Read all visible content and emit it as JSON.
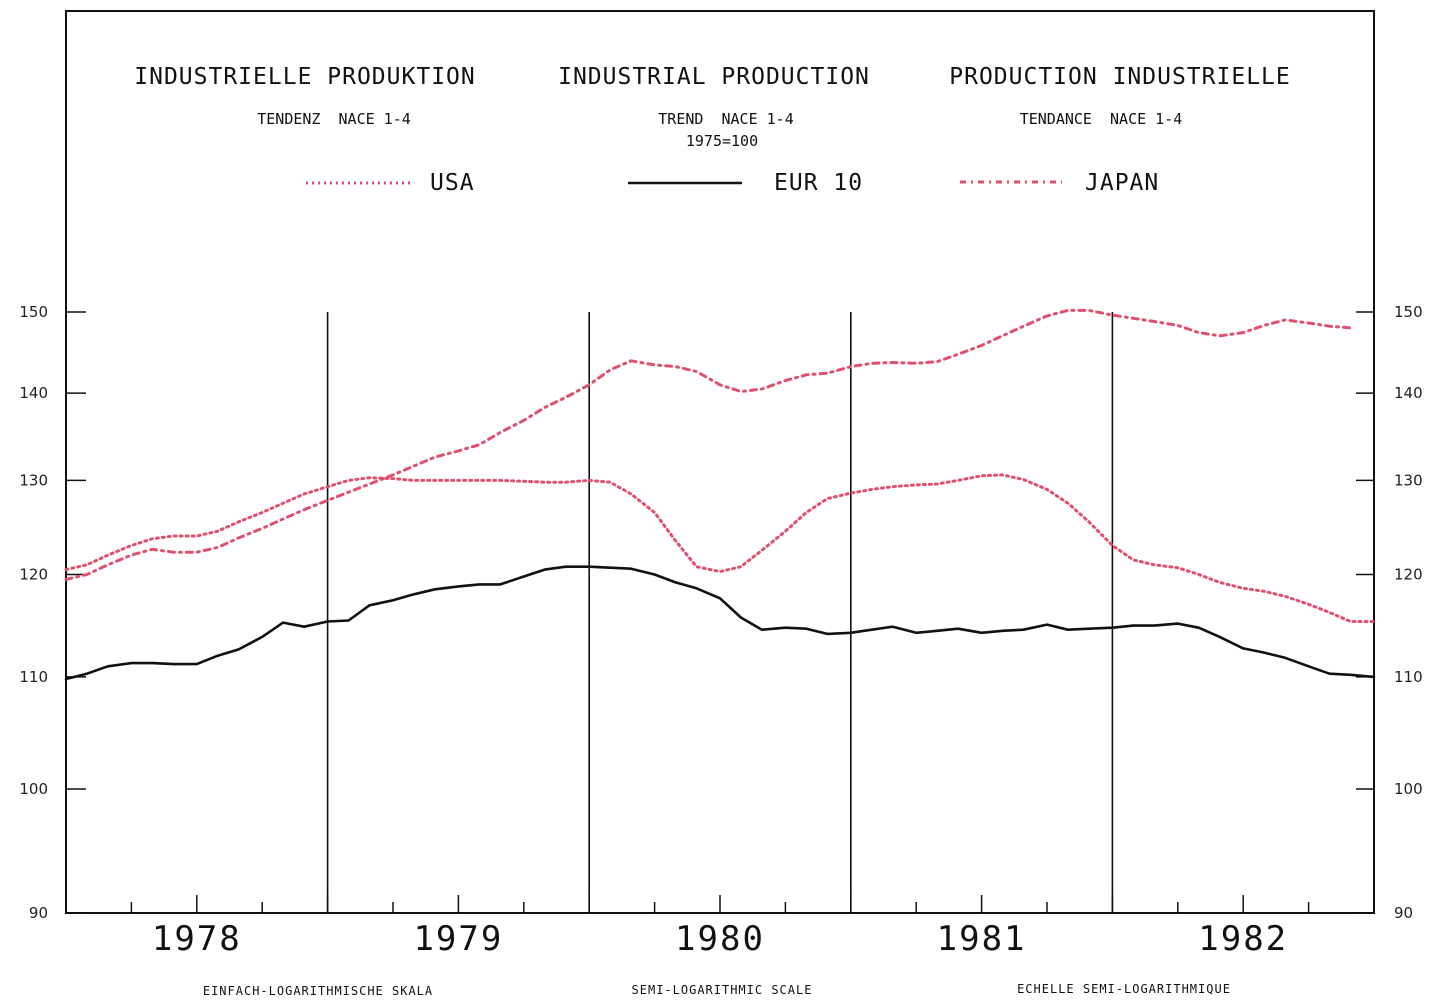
{
  "chart_data": {
    "type": "line",
    "titles": {
      "de": "INDUSTRIELLE PRODUKTION",
      "en": "INDUSTRIAL PRODUCTION",
      "fr": "PRODUCTION INDUSTRIELLE"
    },
    "subtitles": {
      "de": "TENDENZ  NACE 1-4",
      "en": "TREND  NACE 1-4",
      "en_base": "1975=100",
      "fr": "TENDANCE  NACE 1-4"
    },
    "scale_notes": {
      "de": "EINFACH-LOGARITHMISCHE SKALA",
      "en": "SEMI-LOGARITHMIC SCALE",
      "fr": "ECHELLE SEMI-LOGARITHMIQUE"
    },
    "y_scale": "log",
    "ylim": [
      90,
      150
    ],
    "y_ticks": [
      90,
      100,
      110,
      120,
      130,
      140,
      150
    ],
    "y_tick_labels": [
      "90",
      "100",
      "110",
      "120",
      "130",
      "140",
      "150"
    ],
    "x_range": [
      1977.67,
      1982.67
    ],
    "x_year_labels": [
      "1978",
      "1979",
      "1980",
      "1981",
      "1982"
    ],
    "x_year_centers": [
      1978.17,
      1979.17,
      1980.17,
      1981.17,
      1982.17
    ],
    "x_year_dividers": [
      1978.67,
      1979.67,
      1980.67,
      1981.67
    ],
    "grid": false,
    "legend_position": "top",
    "colors": {
      "usa": "#e0506e",
      "eur10": "#111111",
      "japan": "#e0506e"
    },
    "series": [
      {
        "name": "USA",
        "style": "dotted",
        "x": [
          1977.67,
          1977.75,
          1977.83,
          1977.92,
          1978.0,
          1978.08,
          1978.17,
          1978.25,
          1978.33,
          1978.42,
          1978.5,
          1978.58,
          1978.67,
          1978.75,
          1978.83,
          1978.92,
          1979.0,
          1979.08,
          1979.17,
          1979.25,
          1979.33,
          1979.42,
          1979.5,
          1979.58,
          1979.67,
          1979.75,
          1979.83,
          1979.92,
          1980.0,
          1980.08,
          1980.17,
          1980.25,
          1980.33,
          1980.42,
          1980.5,
          1980.58,
          1980.67,
          1980.75,
          1980.83,
          1980.92,
          1981.0,
          1981.08,
          1981.17,
          1981.25,
          1981.33,
          1981.42,
          1981.5,
          1981.58,
          1981.67,
          1981.75,
          1981.83,
          1981.92,
          1982.0,
          1982.08,
          1982.17,
          1982.25,
          1982.33,
          1982.42,
          1982.5,
          1982.58,
          1982.67
        ],
        "values": [
          120.5,
          121.0,
          122.0,
          123.0,
          123.7,
          124.0,
          124.0,
          124.5,
          125.5,
          126.5,
          127.5,
          128.5,
          129.3,
          130.0,
          130.3,
          130.2,
          130.0,
          130.0,
          130.0,
          130.0,
          130.0,
          129.9,
          129.8,
          129.8,
          130.0,
          129.8,
          128.5,
          126.5,
          123.5,
          120.8,
          120.3,
          120.8,
          122.5,
          124.5,
          126.5,
          128.0,
          128.6,
          129.0,
          129.3,
          129.5,
          129.6,
          130.0,
          130.5,
          130.6,
          130.1,
          129.0,
          127.5,
          125.5,
          123.0,
          121.5,
          121.0,
          120.7,
          120.0,
          119.2,
          118.6,
          118.3,
          117.8,
          117.0,
          116.2,
          115.3,
          115.3
        ]
      },
      {
        "name": "EUR 10",
        "style": "solid",
        "x": [
          1977.67,
          1977.75,
          1977.83,
          1977.92,
          1978.0,
          1978.08,
          1978.17,
          1978.25,
          1978.33,
          1978.42,
          1978.5,
          1978.58,
          1978.67,
          1978.75,
          1978.83,
          1978.92,
          1979.0,
          1979.08,
          1979.17,
          1979.25,
          1979.33,
          1979.42,
          1979.5,
          1979.58,
          1979.67,
          1979.75,
          1979.83,
          1979.92,
          1980.0,
          1980.08,
          1980.17,
          1980.25,
          1980.33,
          1980.42,
          1980.5,
          1980.58,
          1980.67,
          1980.75,
          1980.83,
          1980.92,
          1981.0,
          1981.08,
          1981.17,
          1981.25,
          1981.33,
          1981.42,
          1981.5,
          1981.58,
          1981.67,
          1981.75,
          1981.83,
          1981.92,
          1982.0,
          1982.08,
          1982.17,
          1982.25,
          1982.33,
          1982.42,
          1982.5,
          1982.58,
          1982.67
        ],
        "values": [
          109.8,
          110.3,
          111.0,
          111.3,
          111.3,
          111.2,
          111.2,
          112.0,
          112.6,
          113.8,
          115.2,
          114.8,
          115.3,
          115.4,
          116.9,
          117.4,
          118.0,
          118.5,
          118.8,
          119.0,
          119.0,
          119.8,
          120.5,
          120.8,
          120.8,
          120.7,
          120.6,
          120.0,
          119.2,
          118.6,
          117.6,
          115.7,
          114.5,
          114.7,
          114.6,
          114.1,
          114.2,
          114.5,
          114.8,
          114.2,
          114.4,
          114.6,
          114.2,
          114.4,
          114.5,
          115.0,
          114.5,
          114.6,
          114.7,
          114.9,
          114.9,
          115.1,
          114.7,
          113.8,
          112.7,
          112.3,
          111.8,
          111.0,
          110.3,
          110.2,
          110.0
        ]
      },
      {
        "name": "JAPAN",
        "style": "dash-dot",
        "x": [
          1977.67,
          1977.75,
          1977.83,
          1977.92,
          1978.0,
          1978.08,
          1978.17,
          1978.25,
          1978.33,
          1978.42,
          1978.5,
          1978.58,
          1978.67,
          1978.75,
          1978.83,
          1978.92,
          1979.0,
          1979.08,
          1979.17,
          1979.25,
          1979.33,
          1979.42,
          1979.5,
          1979.58,
          1979.67,
          1979.75,
          1979.83,
          1979.92,
          1980.0,
          1980.08,
          1980.17,
          1980.25,
          1980.33,
          1980.42,
          1980.5,
          1980.58,
          1980.67,
          1980.75,
          1980.83,
          1980.92,
          1981.0,
          1981.08,
          1981.17,
          1981.25,
          1981.33,
          1981.42,
          1981.5,
          1981.58,
          1981.67,
          1981.75,
          1981.83,
          1981.92,
          1982.0,
          1982.08,
          1982.17,
          1982.25,
          1982.33,
          1982.42,
          1982.5,
          1982.58
        ],
        "values": [
          119.5,
          120.0,
          121.0,
          122.0,
          122.6,
          122.3,
          122.3,
          122.8,
          123.8,
          124.8,
          125.8,
          126.8,
          127.8,
          128.7,
          129.6,
          130.6,
          131.6,
          132.6,
          133.3,
          134.0,
          135.4,
          136.8,
          138.3,
          139.5,
          141.0,
          142.8,
          143.9,
          143.4,
          143.2,
          142.6,
          141.0,
          140.2,
          140.5,
          141.5,
          142.2,
          142.4,
          143.2,
          143.6,
          143.7,
          143.6,
          143.8,
          144.7,
          145.8,
          147.0,
          148.2,
          149.5,
          150.2,
          150.2,
          149.6,
          149.2,
          148.8,
          148.3,
          147.4,
          147.0,
          147.4,
          148.3,
          149.0,
          148.6,
          148.2,
          148.0
        ]
      }
    ]
  }
}
